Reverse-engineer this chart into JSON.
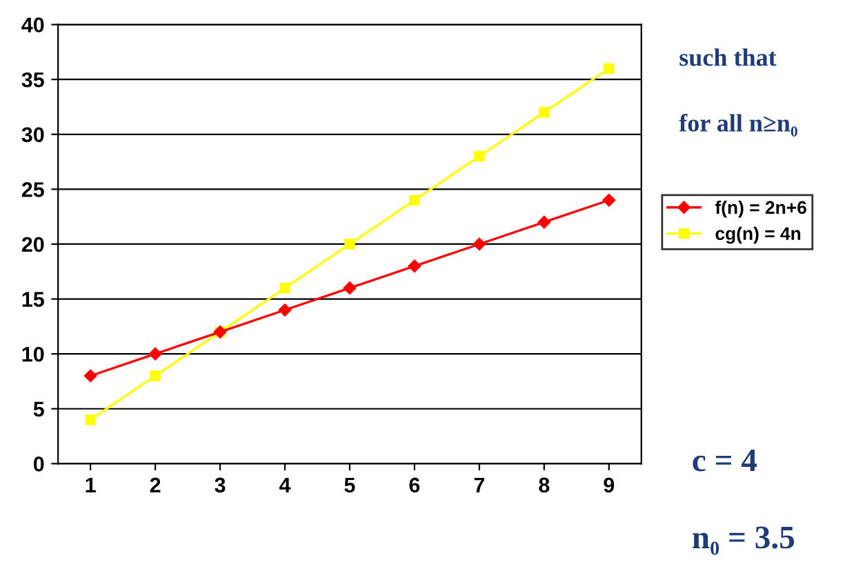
{
  "chart_data": {
    "type": "line",
    "categories": [
      "1",
      "2",
      "3",
      "4",
      "5",
      "6",
      "7",
      "8",
      "9"
    ],
    "series": [
      {
        "name": "f(n) = 2n+6",
        "color": "#ff0000",
        "marker": "diamond",
        "values": [
          8,
          10,
          12,
          14,
          16,
          18,
          20,
          22,
          24
        ]
      },
      {
        "name": "cg(n) = 4n",
        "color": "#ffff00",
        "marker": "square",
        "values": [
          4,
          8,
          12,
          16,
          20,
          24,
          28,
          32,
          36
        ]
      }
    ],
    "ylim": [
      0,
      40
    ],
    "yticks": [
      0,
      5,
      10,
      15,
      20,
      25,
      30,
      35,
      40
    ],
    "grid": "y",
    "legend": "right",
    "annotations": [
      "such that",
      "for all n≥n₀",
      "c = 4",
      "n₀ = 3.5"
    ]
  }
}
